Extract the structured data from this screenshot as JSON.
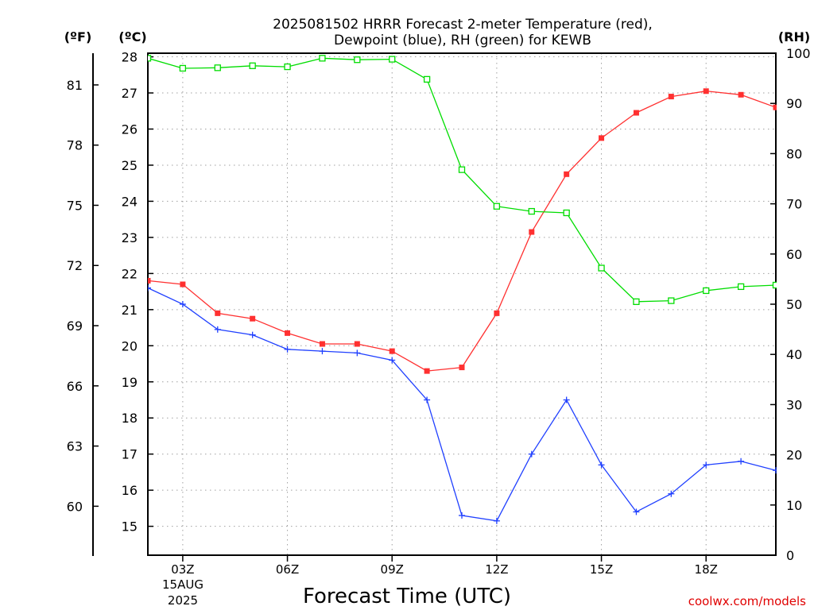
{
  "header": {
    "title_line1": "2025081502 HRRR Forecast 2-meter Temperature (red),",
    "title_line2": "Dewpoint (blue), RH (green) for KEWB"
  },
  "axes": {
    "unit_f": "(ºF)",
    "unit_c": "(ºC)",
    "unit_rh": "(RH)",
    "xlabel": "Forecast Time (UTC)",
    "date_line1": "15AUG",
    "date_line2": "2025"
  },
  "watermark": "coolwx.com/models",
  "colors": {
    "temp": "#ff3030",
    "dewpoint": "#2040ff",
    "rh": "#00dd00"
  },
  "chart_data": {
    "type": "line",
    "x_ticks": [
      "03Z",
      "06Z",
      "09Z",
      "12Z",
      "15Z",
      "18Z"
    ],
    "x_hours": [
      2,
      3,
      4,
      5,
      6,
      7,
      8,
      9,
      10,
      11,
      12,
      13,
      14,
      15,
      16,
      17,
      18,
      19,
      20
    ],
    "xlim": [
      2,
      20
    ],
    "y_left_c": {
      "ticks": [
        15,
        16,
        17,
        18,
        19,
        20,
        21,
        22,
        23,
        24,
        25,
        26,
        27,
        28
      ],
      "range": [
        14.2,
        28.1
      ]
    },
    "y_left_f": {
      "ticks": [
        60,
        63,
        66,
        69,
        72,
        75,
        78,
        81
      ]
    },
    "y_right_rh": {
      "ticks": [
        0,
        10,
        20,
        30,
        40,
        50,
        60,
        70,
        80,
        90,
        100
      ],
      "range": [
        0,
        100
      ]
    },
    "grid": true,
    "series": [
      {
        "name": "Temperature (red)",
        "axis": "c",
        "marker": "filled-square",
        "values": [
          21.8,
          21.7,
          20.9,
          20.75,
          20.35,
          20.05,
          20.05,
          19.85,
          19.3,
          19.4,
          20.9,
          23.15,
          24.75,
          25.75,
          26.45,
          26.9,
          27.05,
          26.95,
          26.6
        ]
      },
      {
        "name": "Dewpoint (blue)",
        "axis": "c",
        "marker": "plus",
        "values": [
          21.6,
          21.15,
          20.45,
          20.3,
          19.9,
          19.85,
          19.8,
          19.6,
          18.5,
          15.3,
          15.15,
          17.0,
          18.5,
          16.7,
          15.4,
          15.9,
          16.7,
          16.8,
          16.55
        ]
      },
      {
        "name": "RH (green)",
        "axis": "rh",
        "marker": "open-square",
        "values": [
          99.0,
          97.0,
          97.1,
          97.5,
          97.3,
          99.0,
          98.7,
          98.8,
          94.8,
          76.8,
          69.5,
          68.5,
          68.2,
          57.2,
          50.5,
          50.7,
          52.7,
          53.5,
          53.8
        ]
      }
    ]
  }
}
